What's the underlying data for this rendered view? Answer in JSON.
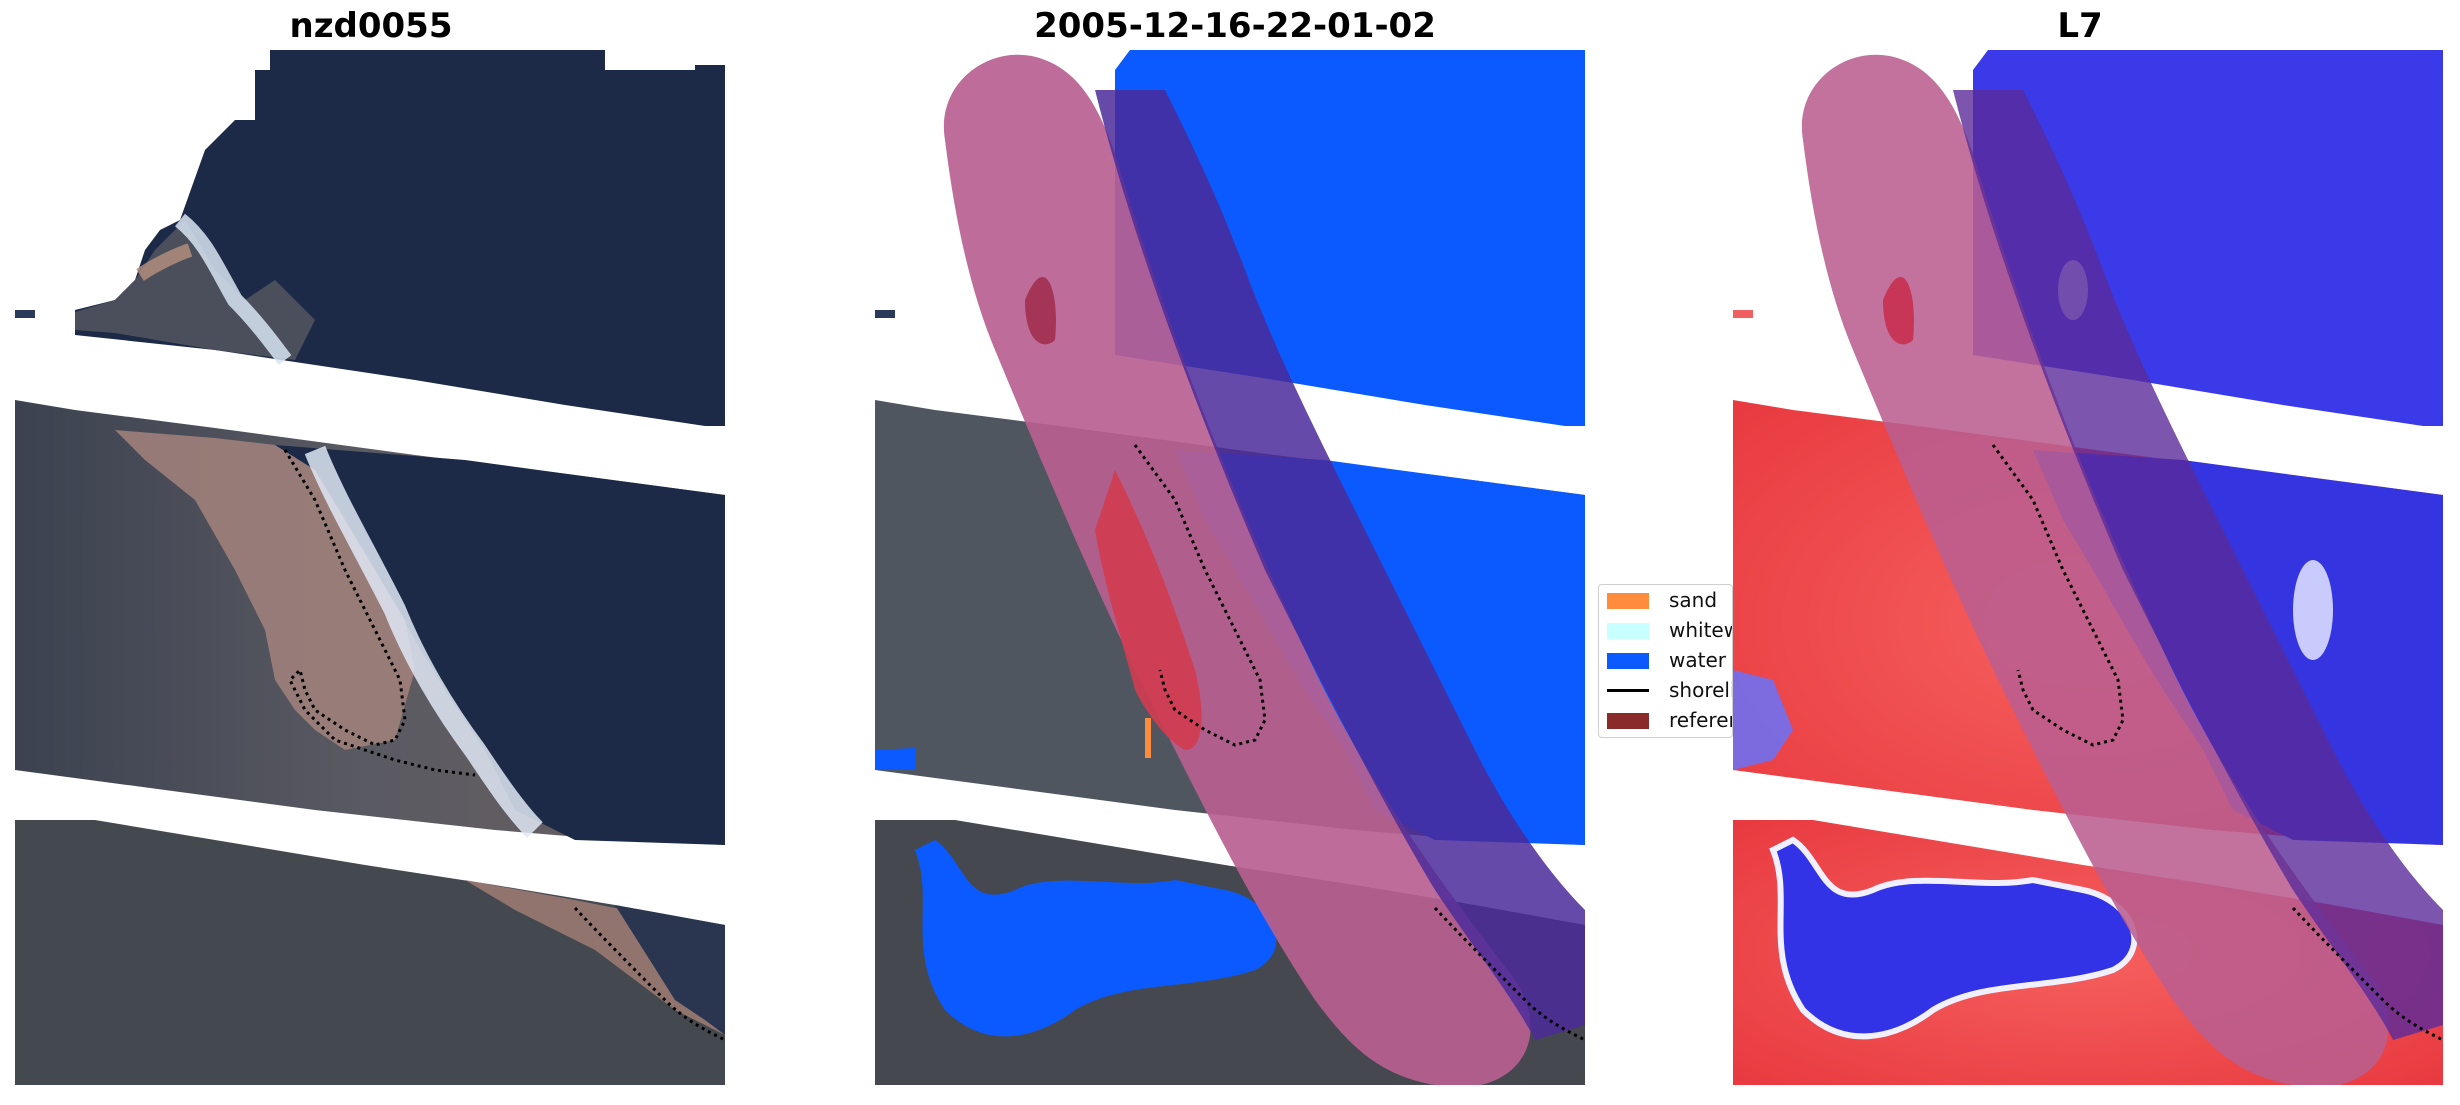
{
  "panels": [
    {
      "title": "nzd0055",
      "kind": "rgb-satellite-image"
    },
    {
      "title": "2005-12-16-22-01-02",
      "kind": "classified-image"
    },
    {
      "title": "L7",
      "kind": "water-index-image"
    }
  ],
  "legend": {
    "items": [
      {
        "label": "sand",
        "color": "#ff8c3c",
        "type": "patch"
      },
      {
        "label": "whitewater",
        "color": "#c8ffff",
        "type": "patch"
      },
      {
        "label": "water",
        "color": "#0a5aff",
        "type": "patch"
      },
      {
        "label": "shoreline",
        "color": "#000000",
        "type": "line"
      },
      {
        "label": "reference",
        "color": "#8b2a2a",
        "type": "patch"
      }
    ]
  },
  "colors": {
    "ocean_dark": "#1c2a47",
    "land_dark": "#404853",
    "sand_pink": "#b88b80",
    "water_blue": "#0a5aff",
    "buffer_pink": "#b95f90",
    "index_red": "#f0484a",
    "index_blue": "#3232e6"
  }
}
